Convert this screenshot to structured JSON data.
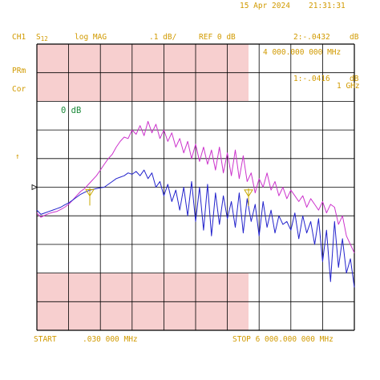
{
  "header": {
    "date": "15 Apr 2024",
    "time": "21:31:31",
    "channel": "CH1",
    "param_prefix": "S",
    "param_sub": "12",
    "format": "log MAG",
    "scale": ".1 dB/",
    "ref": "REF 0 dB",
    "marker2_label": "2:-.0432",
    "marker2_unit": "dB",
    "marker2_freq": "4 000.000 000 MHz",
    "marker1_label": "1:-.0416",
    "marker1_unit": "dB",
    "marker1_freq": "1 GHz"
  },
  "side": {
    "prm": "PRm",
    "cor": "Cor",
    "ref_marker": "↑",
    "ref_level": "0 dB"
  },
  "footer": {
    "start": "START",
    "start_value": ".030 000 MHz",
    "stop": "STOP 6 000.000 000 MHz"
  },
  "colors": {
    "grid": "#000000",
    "mask": "#f7cfcf",
    "trace_magenta": "#cc33cc",
    "trace_blue": "#2222cc",
    "annotation": "#d19a00",
    "marker": "#c8a800",
    "ref_text": "#1b8a3a"
  },
  "chart_data": {
    "type": "line",
    "x_range_mhz": [
      0.03,
      6000
    ],
    "y_divisions": 10,
    "y_scale_db_per_div": 0.1,
    "y_ref_db": 0,
    "ylim_db": [
      -0.5,
      0.5
    ],
    "grid": true,
    "mask_bands_db": [
      [
        0.3,
        0.5
      ],
      [
        -0.5,
        -0.3
      ]
    ],
    "mask_bands_freq_mhz": [
      0.03,
      4000
    ],
    "markers": [
      {
        "id": 1,
        "freq_mhz": 1000,
        "value_db": -0.0416
      },
      {
        "id": 2,
        "freq_mhz": 4000,
        "value_db": -0.0432
      }
    ],
    "series": [
      {
        "x": [
          0,
          75,
          150,
          225,
          300,
          375,
          450,
          525,
          600,
          675,
          750,
          825,
          900,
          975,
          1050,
          1125,
          1200,
          1275,
          1350,
          1425,
          1500,
          1575,
          1650,
          1725,
          1800,
          1875,
          1950,
          2025,
          2100,
          2175,
          2250,
          2325,
          2400,
          2475,
          2550,
          2625,
          2700,
          2775,
          2850,
          2925,
          3000,
          3075,
          3150,
          3225,
          3300,
          3375,
          3450,
          3525,
          3600,
          3675,
          3750,
          3825,
          3900,
          3975,
          4050,
          4125,
          4200,
          4275,
          4350,
          4425,
          4500,
          4575,
          4650,
          4725,
          4800,
          4875,
          4950,
          5025,
          5100,
          5175,
          5250,
          5325,
          5400,
          5475,
          5550,
          5625,
          5700,
          5775,
          5850,
          5925,
          6000
        ],
        "values": [
          -0.09,
          -0.105,
          -0.098,
          -0.092,
          -0.088,
          -0.085,
          -0.078,
          -0.07,
          -0.06,
          -0.045,
          -0.03,
          -0.015,
          -0.005,
          0.01,
          0.025,
          0.04,
          0.06,
          0.08,
          0.1,
          0.115,
          0.14,
          0.16,
          0.175,
          0.17,
          0.2,
          0.185,
          0.215,
          0.18,
          0.23,
          0.19,
          0.22,
          0.17,
          0.2,
          0.16,
          0.19,
          0.14,
          0.17,
          0.12,
          0.16,
          0.1,
          0.15,
          0.09,
          0.14,
          0.08,
          0.13,
          0.06,
          0.14,
          0.05,
          0.12,
          0.04,
          0.13,
          0.03,
          0.11,
          0.02,
          0.05,
          -0.02,
          0.03,
          0.0,
          0.05,
          -0.01,
          0.02,
          -0.03,
          0.0,
          -0.04,
          -0.01,
          -0.03,
          -0.05,
          -0.03,
          -0.07,
          -0.04,
          -0.06,
          -0.08,
          -0.05,
          -0.09,
          -0.06,
          -0.07,
          -0.13,
          -0.1,
          -0.17,
          -0.2,
          -0.23
        ]
      },
      {
        "x": [
          0,
          75,
          150,
          225,
          300,
          375,
          450,
          525,
          600,
          675,
          750,
          825,
          900,
          975,
          1050,
          1125,
          1200,
          1275,
          1350,
          1425,
          1500,
          1575,
          1650,
          1725,
          1800,
          1875,
          1950,
          2025,
          2100,
          2175,
          2250,
          2325,
          2400,
          2475,
          2550,
          2625,
          2700,
          2775,
          2850,
          2925,
          3000,
          3075,
          3150,
          3225,
          3300,
          3375,
          3450,
          3525,
          3600,
          3675,
          3750,
          3825,
          3900,
          3975,
          4050,
          4125,
          4200,
          4275,
          4350,
          4425,
          4500,
          4575,
          4650,
          4725,
          4800,
          4875,
          4950,
          5025,
          5100,
          5175,
          5250,
          5325,
          5400,
          5475,
          5550,
          5625,
          5700,
          5775,
          5850,
          5925,
          6000
        ],
        "values": [
          -0.08,
          -0.095,
          -0.09,
          -0.085,
          -0.08,
          -0.075,
          -0.07,
          -0.062,
          -0.055,
          -0.045,
          -0.035,
          -0.025,
          -0.018,
          -0.012,
          -0.008,
          -0.005,
          -0.002,
          0.0,
          0.01,
          0.02,
          0.03,
          0.035,
          0.04,
          0.05,
          0.045,
          0.055,
          0.04,
          0.06,
          0.03,
          0.05,
          0.0,
          0.02,
          -0.03,
          0.01,
          -0.05,
          -0.01,
          -0.08,
          0.0,
          -0.1,
          0.02,
          -0.12,
          0.0,
          -0.15,
          0.01,
          -0.17,
          -0.02,
          -0.13,
          -0.03,
          -0.11,
          -0.05,
          -0.14,
          -0.02,
          -0.16,
          -0.04,
          -0.12,
          -0.06,
          -0.17,
          -0.05,
          -0.14,
          -0.08,
          -0.16,
          -0.1,
          -0.13,
          -0.12,
          -0.15,
          -0.09,
          -0.18,
          -0.1,
          -0.16,
          -0.12,
          -0.2,
          -0.11,
          -0.26,
          -0.15,
          -0.33,
          -0.12,
          -0.28,
          -0.18,
          -0.3,
          -0.25,
          -0.35
        ]
      }
    ]
  }
}
